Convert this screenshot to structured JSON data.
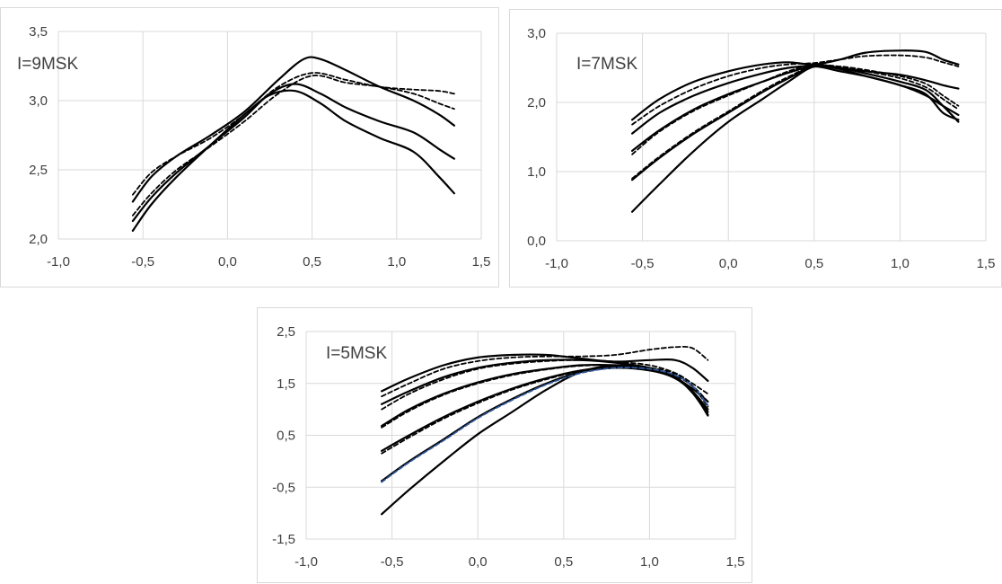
{
  "chart_data": [
    {
      "type": "line",
      "title": "I=9MSK",
      "xlim": [
        -1.0,
        1.5
      ],
      "ylim": [
        2.0,
        3.5
      ],
      "xticks": [
        "-1,0",
        "-0,5",
        "0,0",
        "0,5",
        "1,0",
        "1,5"
      ],
      "yticks": [
        "2,0",
        "2,5",
        "3,0",
        "3,5"
      ],
      "grid": true,
      "series": [
        {
          "style": "solid",
          "x": [
            -0.56,
            -0.45,
            -0.3,
            -0.1,
            0.1,
            0.3,
            0.45,
            0.55,
            0.7,
            0.9,
            1.1,
            1.25,
            1.34
          ],
          "y": [
            2.27,
            2.45,
            2.6,
            2.75,
            2.92,
            3.15,
            3.3,
            3.3,
            3.22,
            3.1,
            3.0,
            2.9,
            2.82
          ]
        },
        {
          "style": "solid",
          "x": [
            -0.56,
            -0.45,
            -0.3,
            -0.1,
            0.1,
            0.25,
            0.4,
            0.55,
            0.7,
            0.9,
            1.1,
            1.25,
            1.34
          ],
          "y": [
            2.13,
            2.3,
            2.48,
            2.68,
            2.88,
            3.05,
            3.12,
            3.05,
            2.95,
            2.85,
            2.77,
            2.65,
            2.58
          ]
        },
        {
          "style": "solid",
          "x": [
            -0.56,
            -0.45,
            -0.3,
            -0.1,
            0.1,
            0.25,
            0.4,
            0.55,
            0.7,
            0.9,
            1.1,
            1.25,
            1.34
          ],
          "y": [
            2.06,
            2.25,
            2.45,
            2.68,
            2.9,
            3.04,
            3.07,
            2.98,
            2.85,
            2.73,
            2.63,
            2.45,
            2.33
          ]
        },
        {
          "style": "dashed",
          "x": [
            -0.56,
            -0.45,
            -0.3,
            -0.1,
            0.1,
            0.3,
            0.5,
            0.7,
            0.9,
            1.1,
            1.25,
            1.34
          ],
          "y": [
            2.32,
            2.48,
            2.6,
            2.73,
            2.9,
            3.1,
            3.2,
            3.15,
            3.1,
            3.08,
            3.07,
            3.05
          ]
        },
        {
          "style": "dashed",
          "x": [
            -0.56,
            -0.45,
            -0.3,
            -0.1,
            0.1,
            0.3,
            0.5,
            0.7,
            0.9,
            1.1,
            1.25,
            1.34
          ],
          "y": [
            2.17,
            2.33,
            2.5,
            2.67,
            2.85,
            3.05,
            3.18,
            3.13,
            3.1,
            3.05,
            2.98,
            2.94
          ]
        }
      ]
    },
    {
      "type": "line",
      "title": "I=7MSK",
      "xlim": [
        -1.0,
        1.5
      ],
      "ylim": [
        0.0,
        3.0
      ],
      "xticks": [
        "-1,0",
        "-0,5",
        "0,0",
        "0,5",
        "1,0",
        "1,5"
      ],
      "yticks": [
        "0,0",
        "1,0",
        "2,0",
        "3,0"
      ],
      "grid": true,
      "series": [
        {
          "style": "solid",
          "x": [
            -0.56,
            -0.4,
            -0.2,
            0.0,
            0.2,
            0.35,
            0.5,
            0.65,
            0.8,
            1.0,
            1.15,
            1.25,
            1.34
          ],
          "y": [
            1.75,
            2.05,
            2.3,
            2.45,
            2.55,
            2.58,
            2.55,
            2.62,
            2.72,
            2.75,
            2.73,
            2.62,
            2.55
          ]
        },
        {
          "style": "solid",
          "x": [
            -0.56,
            -0.4,
            -0.2,
            0.0,
            0.2,
            0.35,
            0.5,
            0.65,
            0.8,
            1.0,
            1.15,
            1.25,
            1.34
          ],
          "y": [
            1.55,
            1.85,
            2.1,
            2.28,
            2.42,
            2.5,
            2.53,
            2.5,
            2.45,
            2.4,
            2.32,
            2.25,
            2.2
          ]
        },
        {
          "style": "solid",
          "x": [
            -0.56,
            -0.4,
            -0.2,
            0.0,
            0.2,
            0.35,
            0.5,
            0.65,
            0.8,
            1.0,
            1.15,
            1.25,
            1.34
          ],
          "y": [
            1.3,
            1.6,
            1.9,
            2.12,
            2.3,
            2.43,
            2.52,
            2.45,
            2.38,
            2.25,
            2.1,
            1.95,
            1.82
          ]
        },
        {
          "style": "solid",
          "x": [
            -0.56,
            -0.4,
            -0.2,
            0.0,
            0.2,
            0.35,
            0.5,
            0.65,
            0.8,
            1.0,
            1.15,
            1.25,
            1.34
          ],
          "y": [
            0.88,
            1.2,
            1.55,
            1.85,
            2.15,
            2.35,
            2.52,
            2.5,
            2.42,
            2.3,
            2.18,
            1.95,
            1.72
          ]
        },
        {
          "style": "solid",
          "x": [
            -0.56,
            -0.4,
            -0.2,
            0.0,
            0.2,
            0.35,
            0.5,
            0.65,
            0.8,
            1.0,
            1.15,
            1.25,
            1.34
          ],
          "y": [
            0.42,
            0.82,
            1.3,
            1.72,
            2.05,
            2.3,
            2.52,
            2.48,
            2.38,
            2.25,
            2.12,
            1.85,
            1.75
          ]
        },
        {
          "style": "dashed",
          "x": [
            -0.56,
            -0.4,
            -0.2,
            0.0,
            0.2,
            0.35,
            0.5,
            0.65,
            0.8,
            1.0,
            1.15,
            1.25,
            1.34
          ],
          "y": [
            1.68,
            1.95,
            2.2,
            2.38,
            2.5,
            2.55,
            2.57,
            2.62,
            2.67,
            2.68,
            2.65,
            2.58,
            2.52
          ]
        },
        {
          "style": "dashed",
          "x": [
            -0.56,
            -0.4,
            -0.2,
            0.0,
            0.2,
            0.35,
            0.5,
            0.65,
            0.8,
            1.0,
            1.15,
            1.25,
            1.34
          ],
          "y": [
            1.25,
            1.58,
            1.88,
            2.1,
            2.3,
            2.45,
            2.55,
            2.5,
            2.45,
            2.35,
            2.22,
            2.05,
            1.9
          ]
        },
        {
          "style": "dashed",
          "x": [
            -0.56,
            -0.4,
            -0.2,
            0.0,
            0.2,
            0.35,
            0.5,
            0.65,
            0.8,
            1.0,
            1.15,
            1.25,
            1.34
          ],
          "y": [
            0.9,
            1.22,
            1.57,
            1.87,
            2.17,
            2.37,
            2.53,
            2.52,
            2.47,
            2.38,
            2.27,
            2.1,
            1.95
          ]
        }
      ]
    },
    {
      "type": "line",
      "title": "I=5MSK",
      "xlim": [
        -1.0,
        1.5
      ],
      "ylim": [
        -1.5,
        2.5
      ],
      "xticks": [
        "-1,0",
        "-0,5",
        "0,0",
        "0,5",
        "1,0",
        "1,5"
      ],
      "yticks": [
        "-1,5",
        "-0,5",
        "0,5",
        "1,5",
        "2,5"
      ],
      "grid": true,
      "series": [
        {
          "style": "solid",
          "x": [
            -0.56,
            -0.4,
            -0.2,
            0.0,
            0.2,
            0.4,
            0.6,
            0.8,
            1.0,
            1.15,
            1.25,
            1.34
          ],
          "y": [
            1.35,
            1.6,
            1.85,
            2.0,
            2.05,
            2.05,
            1.98,
            1.92,
            1.95,
            1.95,
            1.8,
            1.55
          ]
        },
        {
          "style": "solid",
          "x": [
            -0.56,
            -0.4,
            -0.2,
            0.0,
            0.2,
            0.4,
            0.6,
            0.8,
            1.0,
            1.15,
            1.25,
            1.34
          ],
          "y": [
            1.1,
            1.35,
            1.62,
            1.8,
            1.9,
            1.95,
            1.95,
            1.9,
            1.8,
            1.6,
            1.4,
            1.15
          ]
        },
        {
          "style": "solid",
          "x": [
            -0.56,
            -0.4,
            -0.2,
            0.0,
            0.2,
            0.4,
            0.6,
            0.8,
            1.0,
            1.15,
            1.25,
            1.34
          ],
          "y": [
            0.68,
            1.0,
            1.3,
            1.52,
            1.68,
            1.78,
            1.85,
            1.85,
            1.78,
            1.6,
            1.35,
            1.0
          ]
        },
        {
          "style": "solid",
          "x": [
            -0.56,
            -0.4,
            -0.2,
            0.0,
            0.2,
            0.4,
            0.6,
            0.8,
            1.0,
            1.15,
            1.25,
            1.34
          ],
          "y": [
            0.2,
            0.5,
            0.85,
            1.15,
            1.4,
            1.6,
            1.75,
            1.82,
            1.78,
            1.62,
            1.35,
            0.95
          ]
        },
        {
          "style": "solid",
          "x": [
            -0.56,
            -0.4,
            -0.2,
            0.0,
            0.2,
            0.4,
            0.6,
            0.8,
            1.0,
            1.15,
            1.25,
            1.34
          ],
          "y": [
            -0.38,
            0.0,
            0.42,
            0.85,
            1.2,
            1.5,
            1.72,
            1.8,
            1.75,
            1.6,
            1.32,
            0.9
          ]
        },
        {
          "style": "solid",
          "x": [
            -0.56,
            -0.4,
            -0.2,
            0.0,
            0.2,
            0.4,
            0.6,
            0.8,
            1.0,
            1.15,
            1.25,
            1.34
          ],
          "y": [
            -1.02,
            -0.55,
            0.0,
            0.52,
            0.95,
            1.38,
            1.72,
            1.85,
            1.78,
            1.62,
            1.35,
            0.88
          ]
        },
        {
          "style": "dashed",
          "x": [
            -0.56,
            -0.4,
            -0.2,
            0.0,
            0.2,
            0.4,
            0.6,
            0.8,
            1.0,
            1.15,
            1.25,
            1.34
          ],
          "y": [
            1.25,
            1.5,
            1.78,
            1.93,
            2.0,
            2.02,
            2.02,
            2.05,
            2.15,
            2.2,
            2.18,
            1.95
          ]
        },
        {
          "style": "dashed",
          "x": [
            -0.56,
            -0.4,
            -0.2,
            0.0,
            0.2,
            0.4,
            0.6,
            0.8,
            1.0,
            1.15,
            1.25,
            1.34
          ],
          "y": [
            1.0,
            1.3,
            1.58,
            1.78,
            1.88,
            1.93,
            1.95,
            1.92,
            1.85,
            1.7,
            1.5,
            1.3
          ]
        },
        {
          "style": "dashed",
          "x": [
            -0.56,
            -0.4,
            -0.2,
            0.0,
            0.2,
            0.4,
            0.6,
            0.8,
            1.0,
            1.15,
            1.25,
            1.34
          ],
          "y": [
            0.65,
            0.97,
            1.28,
            1.5,
            1.66,
            1.77,
            1.84,
            1.85,
            1.8,
            1.65,
            1.45,
            1.15
          ]
        },
        {
          "style": "dashed",
          "x": [
            -0.56,
            -0.4,
            -0.2,
            0.0,
            0.2,
            0.4,
            0.6,
            0.8,
            1.0,
            1.15,
            1.25,
            1.34
          ],
          "y": [
            0.15,
            0.46,
            0.82,
            1.12,
            1.38,
            1.58,
            1.74,
            1.82,
            1.8,
            1.68,
            1.45,
            1.05
          ]
        },
        {
          "style": "dashed-blue",
          "x": [
            -0.56,
            -0.4,
            -0.2,
            0.0,
            0.2,
            0.4,
            0.6,
            0.8,
            1.0,
            1.15,
            1.25,
            1.34
          ],
          "y": [
            -0.4,
            -0.02,
            0.4,
            0.83,
            1.18,
            1.48,
            1.7,
            1.8,
            1.78,
            1.66,
            1.45,
            1.08
          ]
        }
      ]
    }
  ],
  "colors": {
    "line": "#000000",
    "accent": "#2f5597",
    "grid": "#d9d9d9",
    "text": "#404040"
  }
}
